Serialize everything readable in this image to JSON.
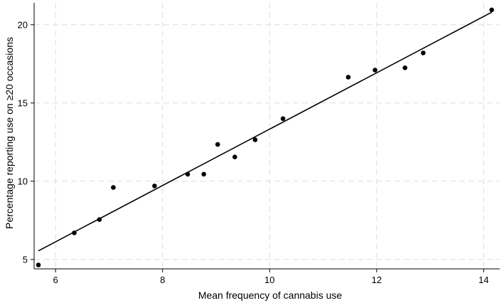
{
  "chart_data": {
    "type": "scatter",
    "title": "",
    "xlabel": "Mean frequency of cannabis use",
    "ylabel": "Percentage reporting use on ≥20 occasions",
    "xlim": [
      5.6,
      14.3
    ],
    "ylim": [
      4.4,
      21.4
    ],
    "xticks": [
      6,
      8,
      10,
      12,
      14
    ],
    "yticks": [
      5,
      10,
      15,
      20
    ],
    "grid": true,
    "legend": "none",
    "series": [
      {
        "type": "scatter",
        "points": [
          [
            5.68,
            4.65
          ],
          [
            6.35,
            6.7
          ],
          [
            6.82,
            7.55
          ],
          [
            7.08,
            9.6
          ],
          [
            7.85,
            9.7
          ],
          [
            8.47,
            10.45
          ],
          [
            8.77,
            10.45
          ],
          [
            9.03,
            12.35
          ],
          [
            9.35,
            11.55
          ],
          [
            9.73,
            12.65
          ],
          [
            10.25,
            14.0
          ],
          [
            11.47,
            16.65
          ],
          [
            11.97,
            17.1
          ],
          [
            12.53,
            17.25
          ],
          [
            12.87,
            18.2
          ],
          [
            14.15,
            20.95
          ]
        ]
      },
      {
        "type": "line",
        "points": [
          [
            5.68,
            5.55
          ],
          [
            14.15,
            20.8
          ]
        ]
      }
    ],
    "colors": {
      "marker": "#000000",
      "line": "#000000",
      "grid": "#dddddd",
      "axis": "#000000"
    }
  }
}
